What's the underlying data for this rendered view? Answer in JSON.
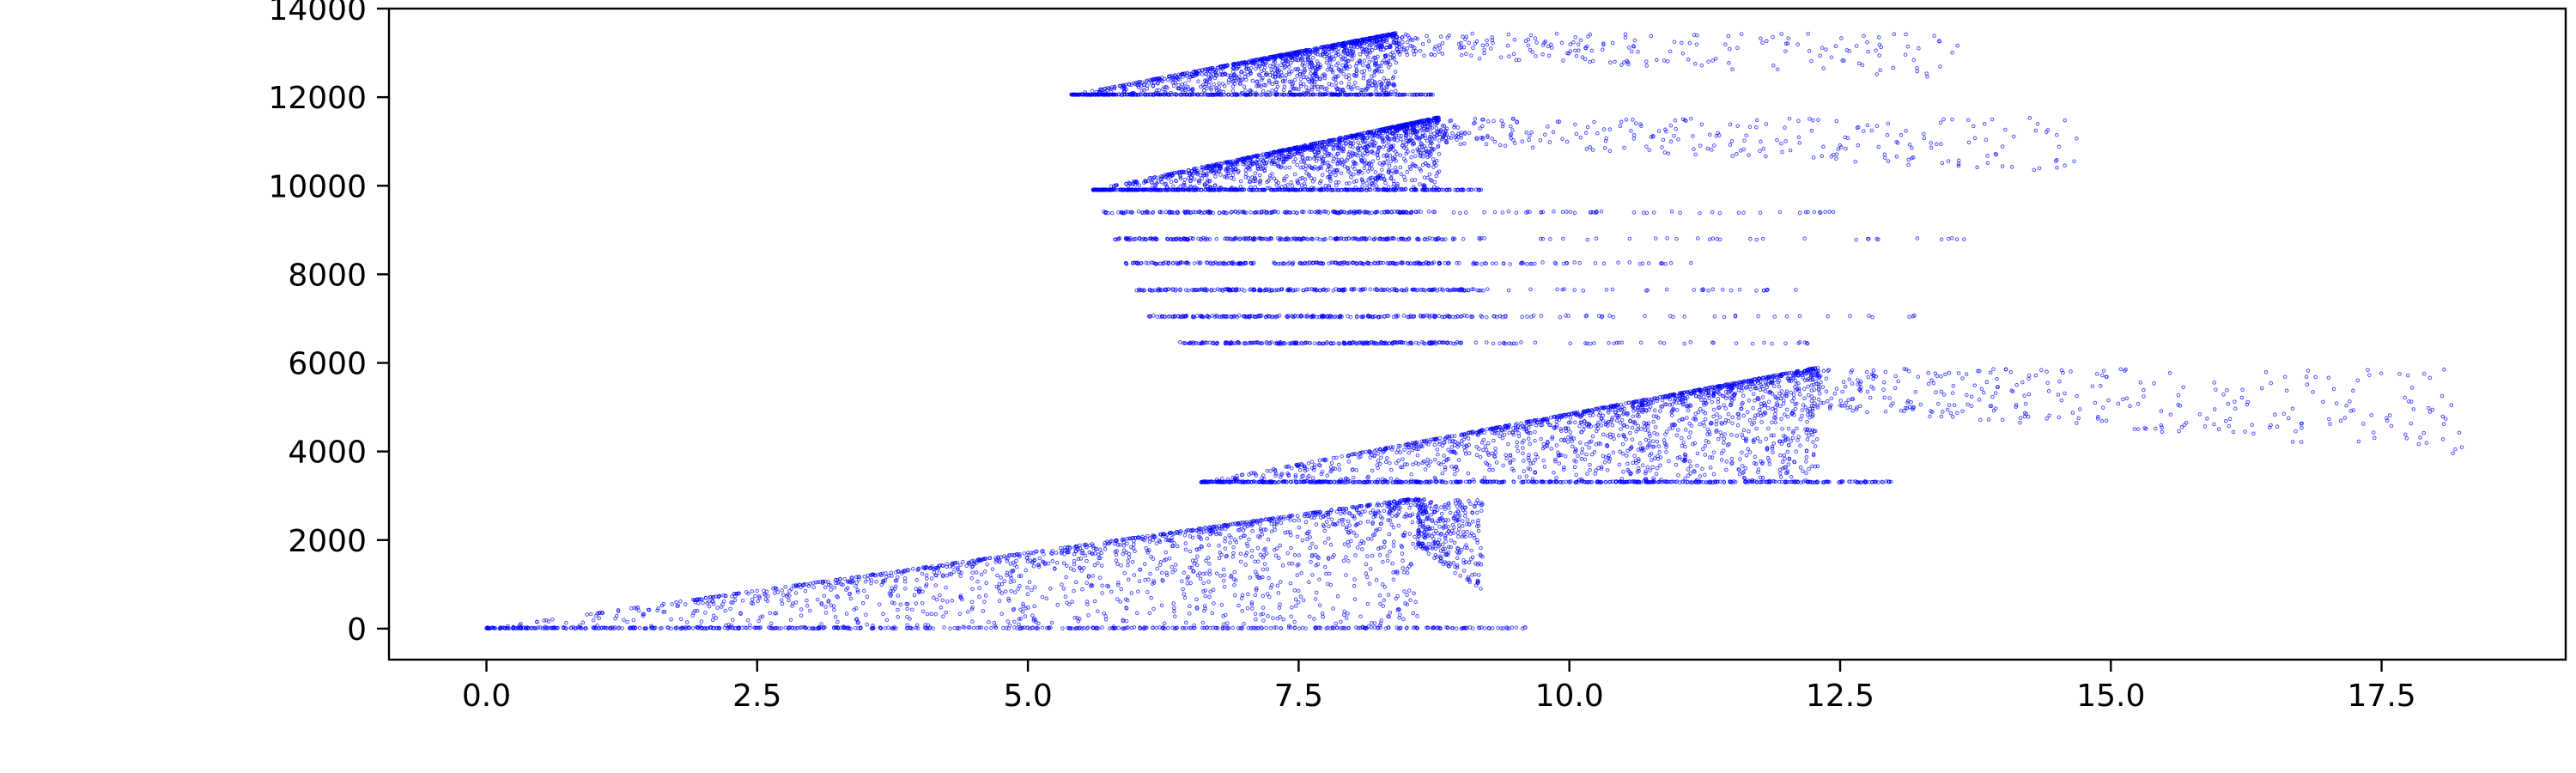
{
  "colors": {
    "points": "#0000ff",
    "axes": "#000000",
    "background": "#ffffff"
  },
  "chart_data": {
    "type": "scatter",
    "title": "",
    "xlabel": "",
    "ylabel": "",
    "xlim": [
      -0.9,
      19.2
    ],
    "ylim": [
      -700,
      14000
    ],
    "xticks": [
      0.0,
      2.5,
      5.0,
      7.5,
      10.0,
      12.5,
      15.0,
      17.5
    ],
    "xtick_labels": [
      "0.0",
      "2.5",
      "5.0",
      "7.5",
      "10.0",
      "12.5",
      "15.0",
      "17.5"
    ],
    "yticks": [
      0,
      2000,
      4000,
      6000,
      8000,
      10000,
      12000,
      14000
    ],
    "ytick_labels": [
      "0",
      "2000",
      "4000",
      "6000",
      "8000",
      "10000",
      "12000",
      "14000"
    ],
    "grid": false,
    "legend": "none",
    "marker": "hollow-circle",
    "clusters": [
      {
        "shape": "wedge",
        "base_y": 0,
        "x_start": 0.0,
        "x_peak": 8.6,
        "y_peak": 2950,
        "tail_x_end": 9.2,
        "n": 2400
      },
      {
        "shape": "wedge",
        "base_y": 3300,
        "x_start": 6.6,
        "x_peak": 12.3,
        "y_peak": 5900,
        "tail_x_end": 18.3,
        "n": 2600
      },
      {
        "shape": "band",
        "base_y": 6450,
        "x_start": 6.4,
        "x_end": 12.4,
        "dense_end": 9.0,
        "n": 260
      },
      {
        "shape": "band",
        "base_y": 7050,
        "x_start": 6.1,
        "x_end": 13.2,
        "dense_end": 9.0,
        "n": 260
      },
      {
        "shape": "band",
        "base_y": 7650,
        "x_start": 6.0,
        "x_end": 12.1,
        "dense_end": 9.0,
        "n": 260
      },
      {
        "shape": "band",
        "base_y": 8250,
        "x_start": 5.9,
        "x_end": 11.3,
        "dense_end": 8.8,
        "n": 260
      },
      {
        "shape": "band",
        "base_y": 8800,
        "x_start": 5.8,
        "x_end": 13.7,
        "dense_end": 8.8,
        "n": 260
      },
      {
        "shape": "band",
        "base_y": 9400,
        "x_start": 5.7,
        "x_end": 12.5,
        "dense_end": 8.6,
        "n": 260
      },
      {
        "shape": "wedge",
        "base_y": 9900,
        "x_start": 5.6,
        "x_peak": 8.8,
        "y_peak": 11550,
        "tail_x_end": 14.7,
        "n": 2100
      },
      {
        "shape": "wedge",
        "base_y": 12050,
        "x_start": 5.4,
        "x_peak": 8.4,
        "y_peak": 13450,
        "tail_x_end": 13.6,
        "n": 1800
      }
    ]
  }
}
